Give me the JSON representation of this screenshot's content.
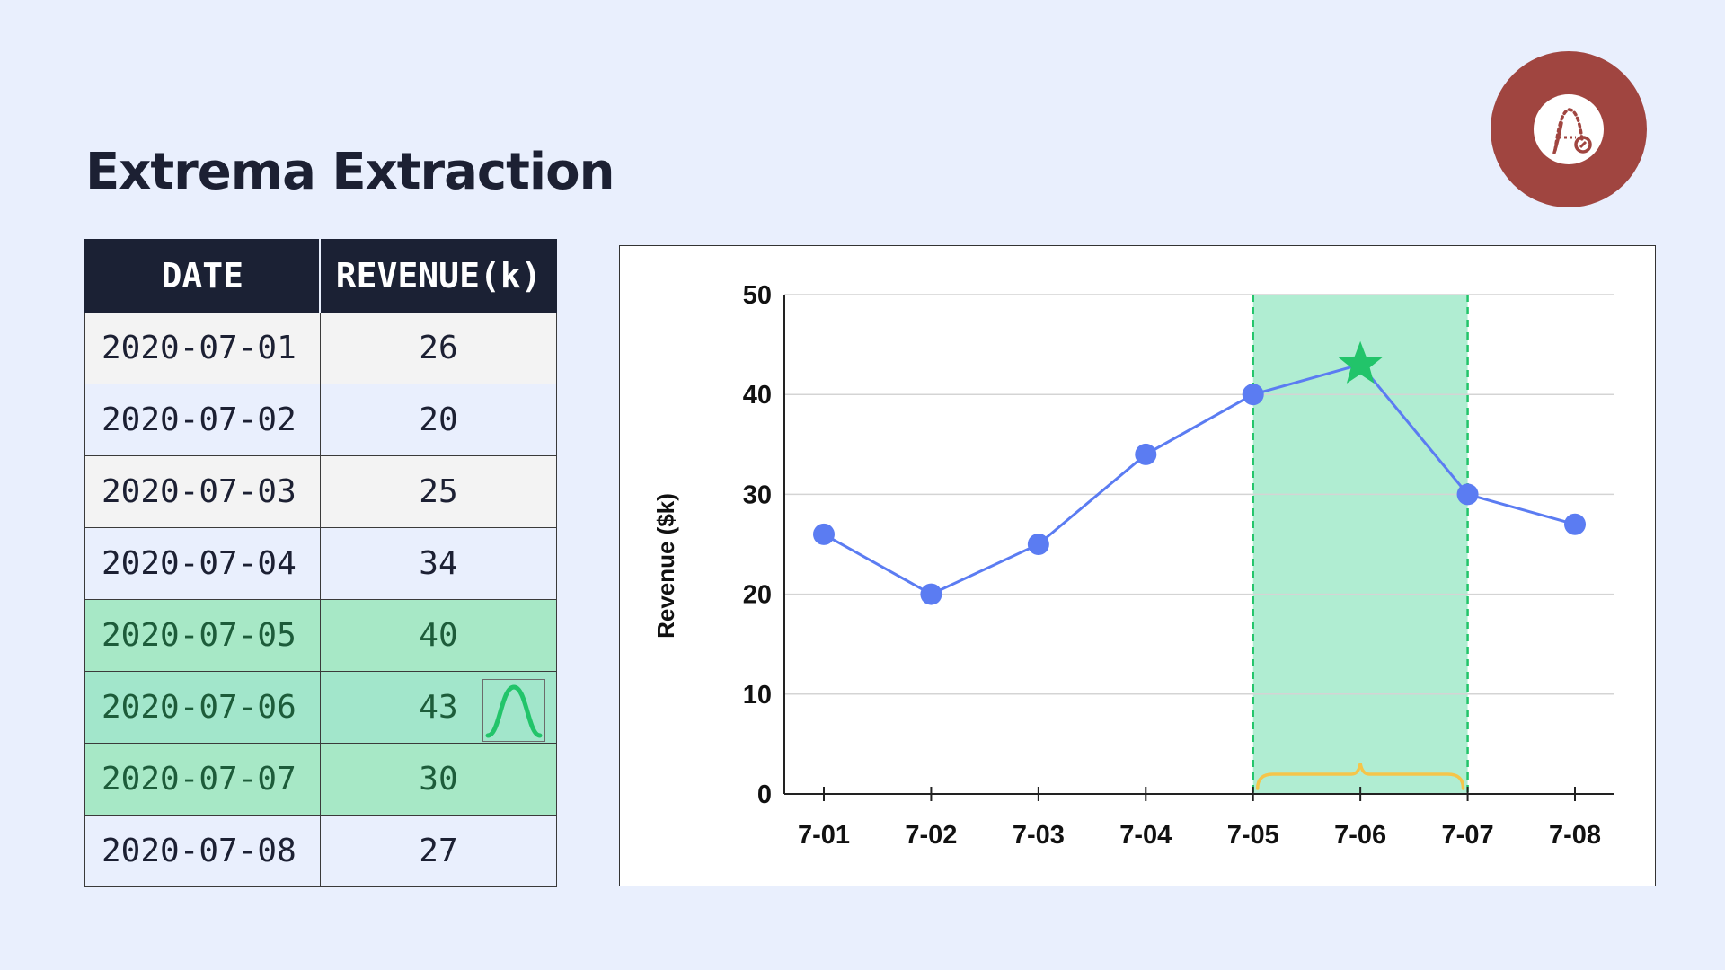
{
  "title": "Extrema Extraction",
  "logo": {
    "icon": "peak-search-icon",
    "color": "#a04540"
  },
  "table": {
    "headers": [
      "DATE",
      "REVENUE(k)"
    ],
    "rows": [
      {
        "date": "2020-07-01",
        "revenue": "26"
      },
      {
        "date": "2020-07-02",
        "revenue": "20"
      },
      {
        "date": "2020-07-03",
        "revenue": "25"
      },
      {
        "date": "2020-07-04",
        "revenue": "34"
      },
      {
        "date": "2020-07-05",
        "revenue": "40",
        "highlighted": true
      },
      {
        "date": "2020-07-06",
        "revenue": "43",
        "highlighted": true,
        "peak": true,
        "icon": "peak-curve-icon"
      },
      {
        "date": "2020-07-07",
        "revenue": "30",
        "highlighted": true
      },
      {
        "date": "2020-07-08",
        "revenue": "27"
      }
    ],
    "highlight_color": "#a7e8c6"
  },
  "chart_data": {
    "type": "line",
    "title": "",
    "xlabel": "",
    "ylabel": "Revenue ($k)",
    "categories": [
      "7-01",
      "7-02",
      "7-03",
      "7-04",
      "7-05",
      "7-06",
      "7-07",
      "7-08"
    ],
    "values": [
      26,
      20,
      25,
      34,
      40,
      43,
      30,
      27
    ],
    "ylim": [
      0,
      50
    ],
    "yticks": [
      0,
      10,
      20,
      30,
      40,
      50
    ],
    "grid": true,
    "highlight_window": {
      "start": "7-05",
      "end": "7-07"
    },
    "peak": {
      "category": "7-06",
      "value": 43,
      "marker": "star"
    },
    "colors": {
      "line": "#5b7cf2",
      "window": "#b0edd2",
      "window_border": "#22c46a",
      "peak": "#22c46a",
      "brace": "#f5c54a"
    }
  }
}
